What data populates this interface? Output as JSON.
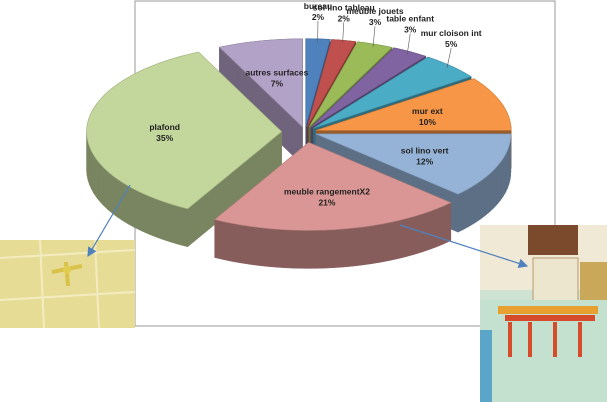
{
  "chart_data": {
    "type": "pie",
    "categories": [
      "bureau",
      "sol lino  tableau",
      "meuble  jouets",
      "table enfant",
      "mur cloison int",
      "mur ext",
      "sol lino vert",
      "meuble rangementX2",
      "plafond",
      "autres surfaces"
    ],
    "values": [
      2,
      2,
      3,
      3,
      5,
      10,
      12,
      21,
      35,
      7
    ],
    "value_labels": [
      "2%",
      "2%",
      "3%",
      "3%",
      "5%",
      "10%",
      "12%",
      "21%",
      "35%",
      "7%"
    ],
    "colors": [
      "#4f81bd",
      "#c0504d",
      "#9bbb59",
      "#8064a2",
      "#4bacc6",
      "#f79646",
      "#95b3d7",
      "#d99694",
      "#c3d69b",
      "#b3a2c7"
    ]
  }
}
